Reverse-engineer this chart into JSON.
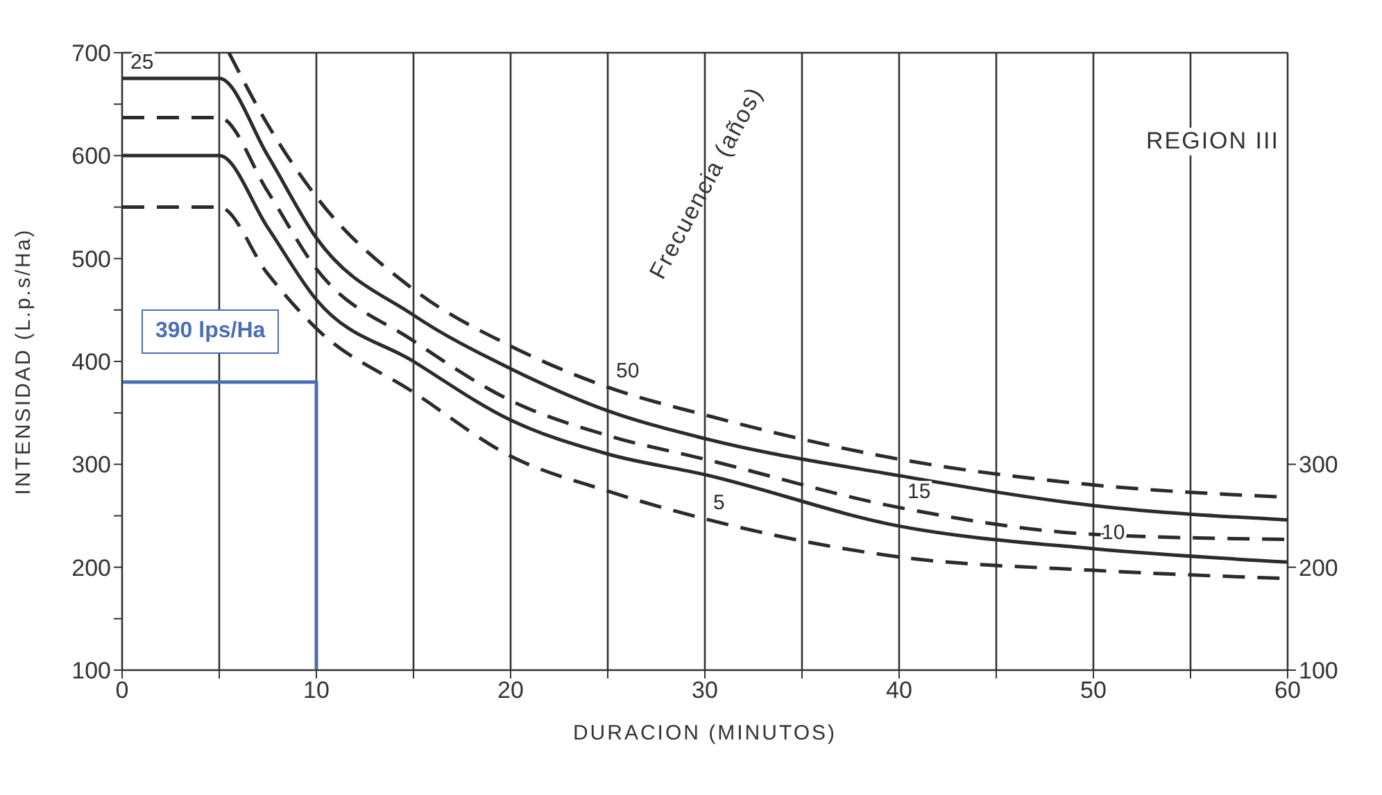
{
  "chart_data": {
    "type": "line",
    "xlabel": "DURACION (MINUTOS)",
    "ylabel": "INTENSIDAD (L.p.s/Ha)",
    "xlim": [
      0,
      60
    ],
    "xticks": [
      0,
      {
        "value": 5,
        "label": null
      },
      10,
      {
        "value": 15,
        "label": null
      },
      20,
      {
        "value": 25,
        "label": null
      },
      30,
      {
        "value": 35,
        "label": null
      },
      40,
      {
        "value": 45,
        "label": null
      },
      50,
      {
        "value": 55,
        "label": null
      },
      60
    ],
    "ylim": [
      100,
      700
    ],
    "yticks": [
      100,
      {
        "value": 150,
        "label": null
      },
      200,
      {
        "value": 250,
        "label": null
      },
      300,
      {
        "value": 350,
        "label": null
      },
      400,
      {
        "value": 450,
        "label": null
      },
      500,
      {
        "value": 550,
        "label": null
      },
      600,
      {
        "value": 650,
        "label": null
      },
      700
    ],
    "y2lim": [
      100,
      700
    ],
    "y2ticks": [
      100,
      200,
      300
    ],
    "grid": true,
    "line_style": "solid",
    "series": [
      {
        "name": "50",
        "color": "#2b2b2b",
        "line_style": "dashed",
        "x": [
          5.5,
          7.5,
          10,
          15,
          20,
          25,
          30,
          40,
          50,
          60
        ],
        "values": [
          700,
          630,
          560,
          470,
          415,
          375,
          348,
          305,
          280,
          268
        ]
      },
      {
        "name": "25",
        "color": "#2b2b2b",
        "x": [
          0,
          5,
          7.5,
          10,
          15,
          20,
          25,
          30,
          40,
          50,
          60
        ],
        "values": [
          675,
          675,
          600,
          520,
          445,
          393,
          352,
          325,
          289,
          260,
          246
        ]
      },
      {
        "name": "15",
        "color": "#2b2b2b",
        "line_style": "dashed",
        "x": [
          0,
          5,
          7.5,
          10,
          15,
          20,
          25,
          30,
          40,
          50,
          60
        ],
        "values": [
          637,
          637,
          565,
          490,
          420,
          362,
          328,
          305,
          258,
          232,
          227
        ]
      },
      {
        "name": "10",
        "color": "#2b2b2b",
        "x": [
          0,
          5,
          7.5,
          10,
          15,
          20,
          25,
          30,
          40,
          50,
          60
        ],
        "values": [
          600,
          600,
          530,
          460,
          400,
          343,
          310,
          290,
          240,
          218,
          205
        ]
      },
      {
        "name": "5",
        "color": "#2b2b2b",
        "line_style": "dashed",
        "x": [
          0,
          5,
          7.5,
          10,
          15,
          20,
          25,
          30,
          40,
          50,
          60
        ],
        "values": [
          550,
          550,
          485,
          432,
          370,
          308,
          274,
          247,
          210,
          197,
          189
        ]
      },
      {
        "color": "#4a6fb5",
        "x": [
          0,
          10,
          10
        ],
        "values": [
          380,
          380,
          100
        ]
      }
    ],
    "annotations": [
      "REGION III",
      "Frecuencia (años)",
      "390 lps/Ha"
    ]
  }
}
